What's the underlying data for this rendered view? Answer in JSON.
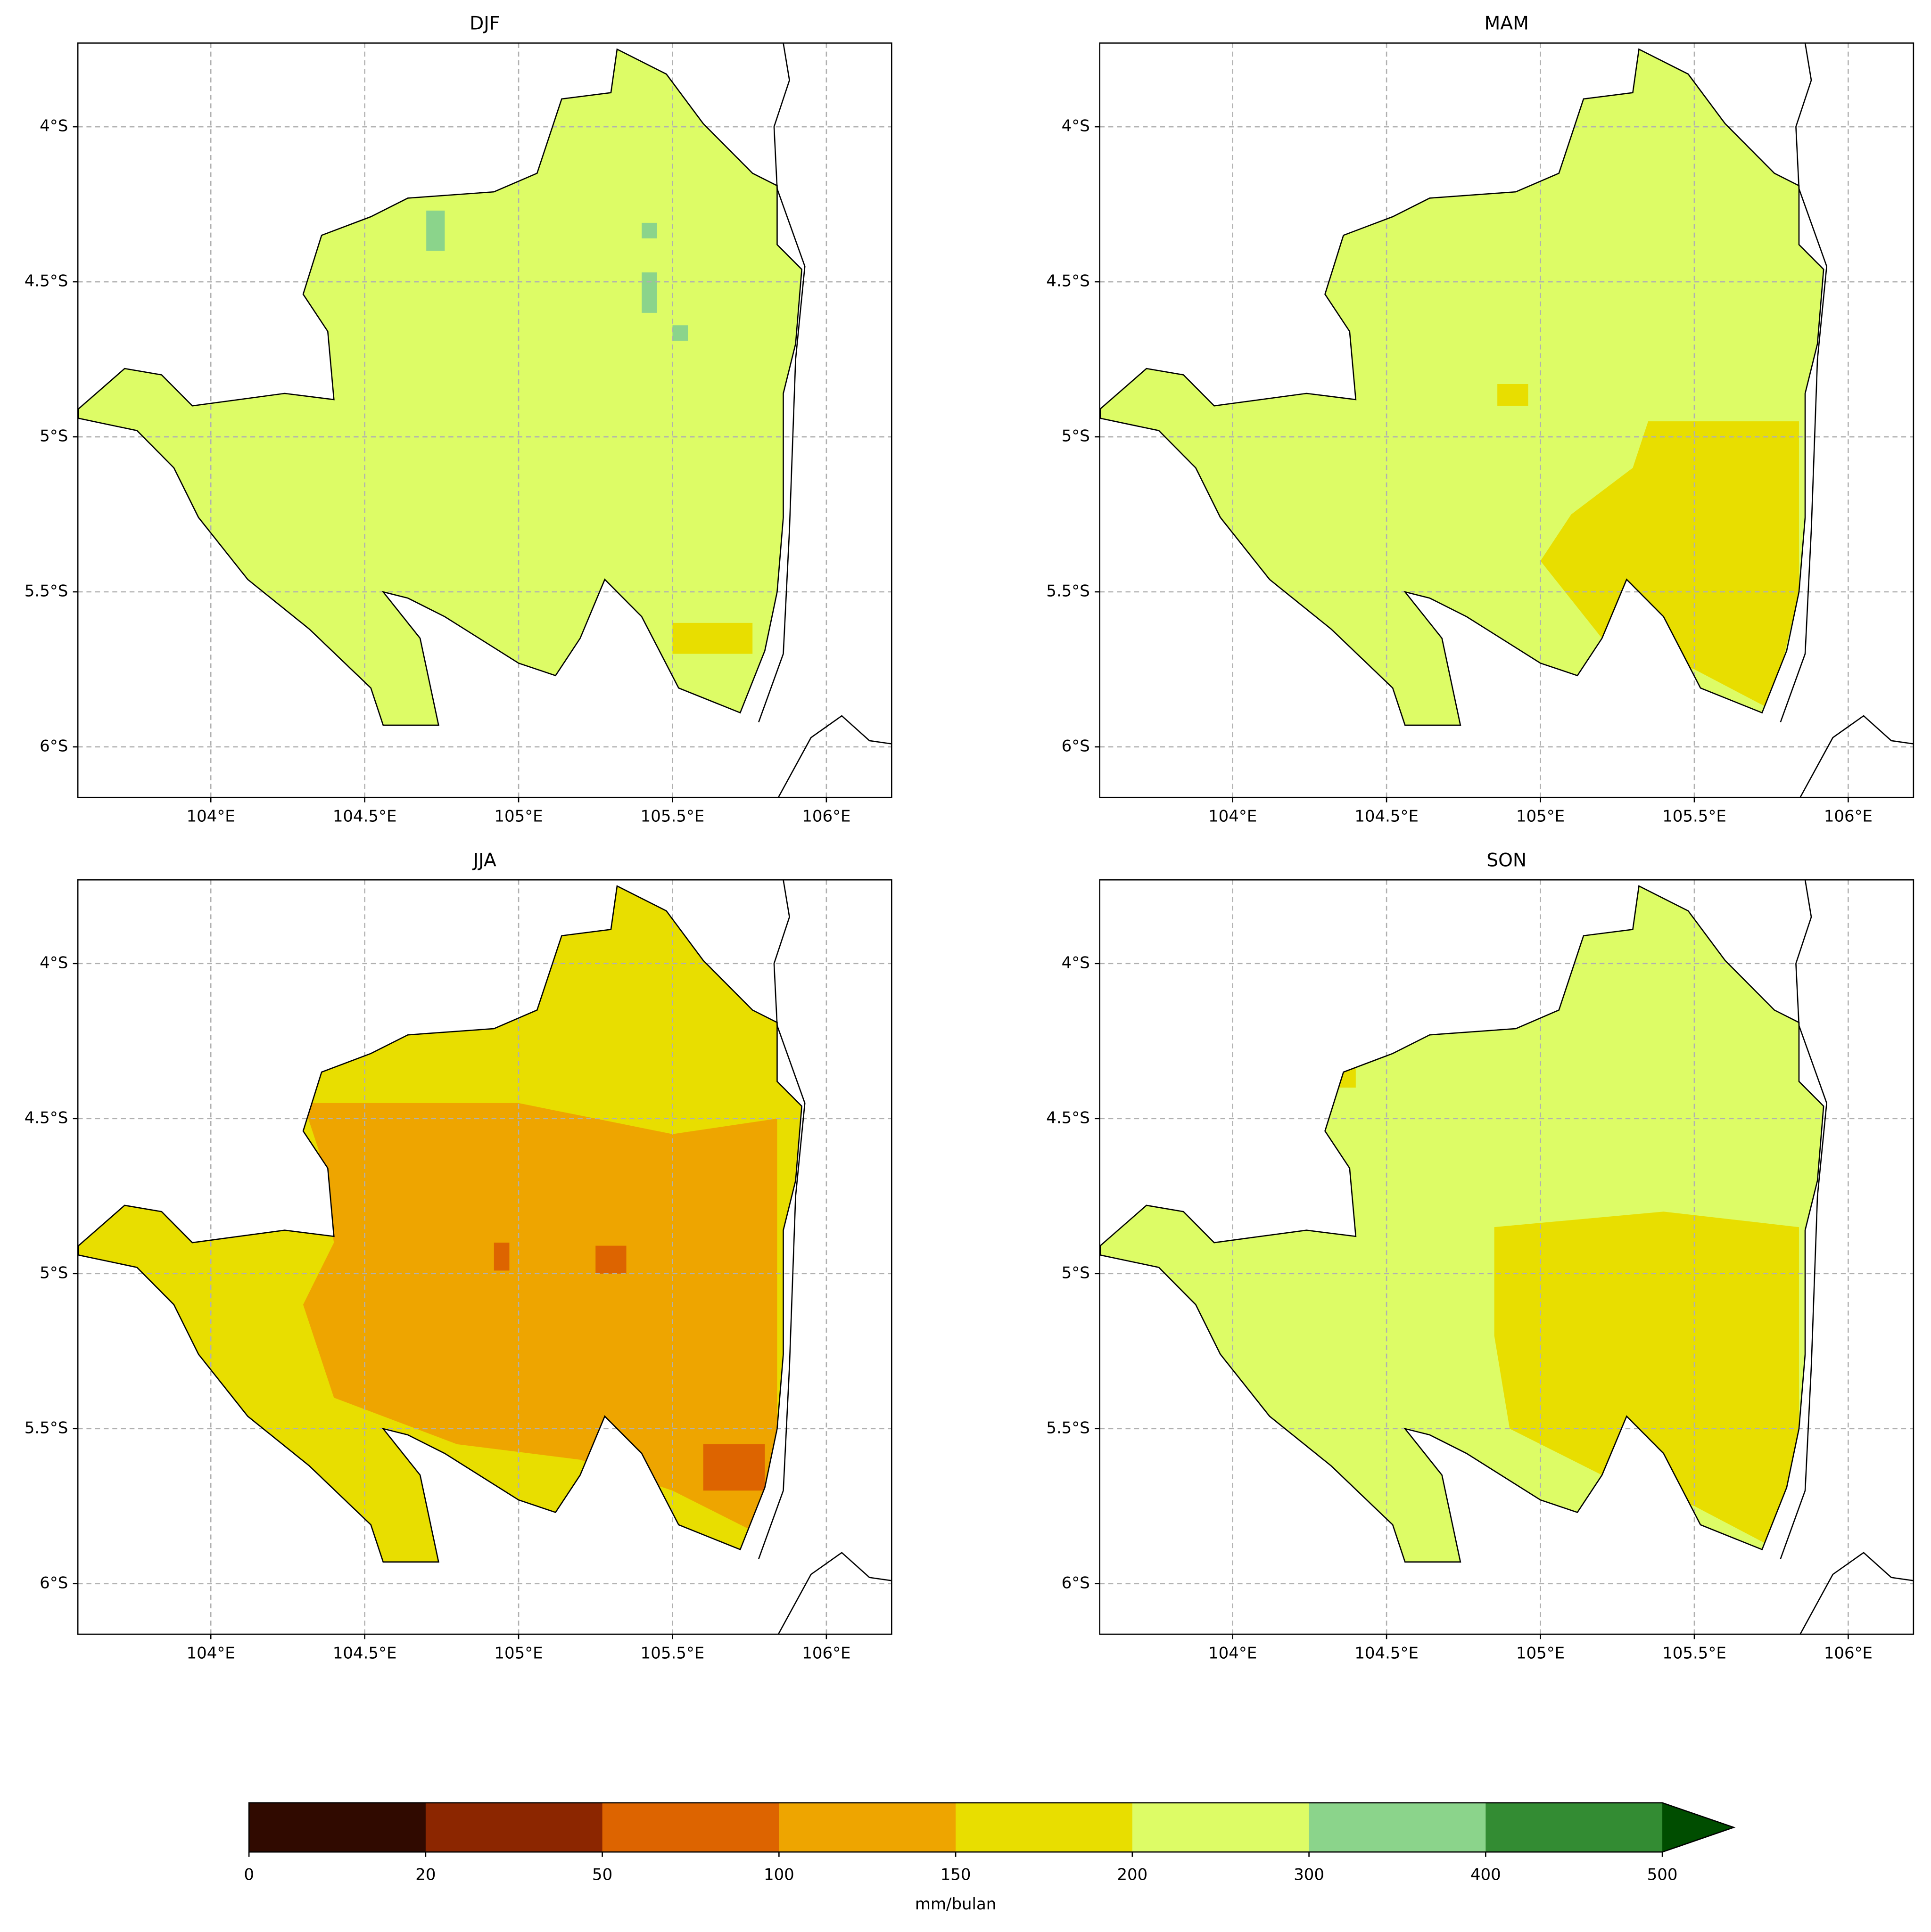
{
  "axes": {
    "xlim": [
      103.568,
      106.212
    ],
    "ylim": [
      -6.163,
      -3.73
    ],
    "xticks": [
      {
        "value": 104,
        "label": "104°E"
      },
      {
        "value": 104.5,
        "label": "104.5°E"
      },
      {
        "value": 105,
        "label": "105°E"
      },
      {
        "value": 105.5,
        "label": "105.5°E"
      },
      {
        "value": 106,
        "label": "106°E"
      }
    ],
    "yticks": [
      {
        "value": -4,
        "label": "4°S"
      },
      {
        "value": -4.5,
        "label": "4.5°S"
      },
      {
        "value": -5,
        "label": "5°S"
      },
      {
        "value": -5.5,
        "label": "5.5°S"
      },
      {
        "value": -6,
        "label": "6°S"
      }
    ],
    "grid": true
  },
  "province_outline": [
    [
      103.57,
      -4.91
    ],
    [
      103.72,
      -4.78
    ],
    [
      103.84,
      -4.8
    ],
    [
      103.94,
      -4.9
    ],
    [
      104.24,
      -4.86
    ],
    [
      104.4,
      -4.88
    ],
    [
      104.38,
      -4.66
    ],
    [
      104.3,
      -4.54
    ],
    [
      104.36,
      -4.35
    ],
    [
      104.52,
      -4.29
    ],
    [
      104.64,
      -4.23
    ],
    [
      104.92,
      -4.21
    ],
    [
      105.06,
      -4.15
    ],
    [
      105.14,
      -3.91
    ],
    [
      105.3,
      -3.89
    ],
    [
      105.32,
      -3.75
    ],
    [
      105.48,
      -3.83
    ],
    [
      105.6,
      -3.99
    ],
    [
      105.76,
      -4.15
    ],
    [
      105.84,
      -4.19
    ],
    [
      105.84,
      -4.38
    ],
    [
      105.92,
      -4.46
    ],
    [
      105.9,
      -4.7
    ],
    [
      105.86,
      -4.86
    ],
    [
      105.86,
      -5.26
    ],
    [
      105.84,
      -5.5
    ],
    [
      105.8,
      -5.69
    ],
    [
      105.72,
      -5.89
    ],
    [
      105.52,
      -5.81
    ],
    [
      105.4,
      -5.58
    ],
    [
      105.28,
      -5.46
    ],
    [
      105.2,
      -5.65
    ],
    [
      105.12,
      -5.77
    ],
    [
      105.0,
      -5.73
    ],
    [
      104.76,
      -5.58
    ],
    [
      104.64,
      -5.52
    ],
    [
      104.56,
      -5.5
    ],
    [
      104.68,
      -5.65
    ],
    [
      104.74,
      -5.93
    ],
    [
      104.56,
      -5.93
    ],
    [
      104.52,
      -5.81
    ],
    [
      104.32,
      -5.62
    ],
    [
      104.12,
      -5.46
    ],
    [
      103.96,
      -5.26
    ],
    [
      103.88,
      -5.1
    ],
    [
      103.76,
      -4.98
    ],
    [
      103.57,
      -4.94
    ]
  ],
  "panels": [
    {
      "title": "DJF",
      "base_value": 250,
      "zones": [
        {
          "polygon": [
            [
              104.7,
              -4.27
            ],
            [
              104.76,
              -4.27
            ],
            [
              104.76,
              -4.4
            ],
            [
              104.7,
              -4.4
            ]
          ],
          "value": 350
        },
        {
          "polygon": [
            [
              105.4,
              -4.47
            ],
            [
              105.45,
              -4.47
            ],
            [
              105.45,
              -4.6
            ],
            [
              105.4,
              -4.6
            ]
          ],
          "value": 350
        },
        {
          "polygon": [
            [
              105.4,
              -4.31
            ],
            [
              105.45,
              -4.31
            ],
            [
              105.45,
              -4.36
            ],
            [
              105.4,
              -4.36
            ]
          ],
          "value": 350
        },
        {
          "polygon": [
            [
              105.5,
              -4.64
            ],
            [
              105.55,
              -4.64
            ],
            [
              105.55,
              -4.69
            ],
            [
              105.5,
              -4.69
            ]
          ],
          "value": 350
        },
        {
          "polygon": [
            [
              105.5,
              -5.6
            ],
            [
              105.76,
              -5.6
            ],
            [
              105.76,
              -5.7
            ],
            [
              105.5,
              -5.7
            ]
          ],
          "value": 175
        }
      ]
    },
    {
      "title": "MAM",
      "base_value": 250,
      "zones": [
        {
          "polygon": [
            [
              105.35,
              -4.95
            ],
            [
              105.84,
              -4.95
            ],
            [
              105.84,
              -5.5
            ],
            [
              105.75,
              -5.88
            ],
            [
              105.5,
              -5.75
            ],
            [
              105.2,
              -5.65
            ],
            [
              105.0,
              -5.4
            ],
            [
              105.1,
              -5.25
            ],
            [
              105.3,
              -5.1
            ]
          ],
          "value": 175
        },
        {
          "polygon": [
            [
              104.86,
              -4.83
            ],
            [
              104.96,
              -4.83
            ],
            [
              104.96,
              -4.9
            ],
            [
              104.86,
              -4.9
            ]
          ],
          "value": 175
        }
      ]
    },
    {
      "title": "JJA",
      "base_value": 175,
      "zones": [
        {
          "polygon": [
            [
              104.3,
              -4.45
            ],
            [
              105.0,
              -4.45
            ],
            [
              105.5,
              -4.55
            ],
            [
              105.84,
              -4.5
            ],
            [
              105.84,
              -5.5
            ],
            [
              105.8,
              -5.85
            ],
            [
              105.5,
              -5.7
            ],
            [
              105.2,
              -5.6
            ],
            [
              104.8,
              -5.55
            ],
            [
              104.4,
              -5.4
            ],
            [
              104.3,
              -5.1
            ],
            [
              104.4,
              -4.9
            ],
            [
              104.35,
              -4.6
            ]
          ],
          "value": 125
        },
        {
          "polygon": [
            [
              105.25,
              -4.91
            ],
            [
              105.35,
              -4.91
            ],
            [
              105.35,
              -5.0
            ],
            [
              105.25,
              -5.0
            ]
          ],
          "value": 75
        },
        {
          "polygon": [
            [
              105.6,
              -5.55
            ],
            [
              105.8,
              -5.55
            ],
            [
              105.8,
              -5.7
            ],
            [
              105.6,
              -5.7
            ]
          ],
          "value": 75
        },
        {
          "polygon": [
            [
              104.92,
              -4.9
            ],
            [
              104.97,
              -4.9
            ],
            [
              104.97,
              -4.99
            ],
            [
              104.92,
              -4.99
            ]
          ],
          "value": 75
        }
      ]
    },
    {
      "title": "SON",
      "base_value": 250,
      "zones": [
        {
          "polygon": [
            [
              104.85,
              -4.85
            ],
            [
              105.4,
              -4.8
            ],
            [
              105.84,
              -4.85
            ],
            [
              105.84,
              -5.55
            ],
            [
              105.75,
              -5.88
            ],
            [
              105.5,
              -5.75
            ],
            [
              105.2,
              -5.65
            ],
            [
              104.9,
              -5.5
            ],
            [
              104.85,
              -5.2
            ]
          ],
          "value": 175
        },
        {
          "polygon": [
            [
              104.3,
              -4.25
            ],
            [
              104.4,
              -4.25
            ],
            [
              104.4,
              -4.4
            ],
            [
              104.3,
              -4.4
            ]
          ],
          "value": 175
        }
      ]
    }
  ],
  "colorbar": {
    "label": "mm/bulan",
    "bounds": [
      0,
      20,
      50,
      100,
      150,
      200,
      300,
      400,
      500
    ],
    "colors": [
      "#300a00",
      "#8c2600",
      "#dd6400",
      "#eea500",
      "#e8de00",
      "#ddfc66",
      "#8bd48b",
      "#338c33",
      "#004d00"
    ]
  }
}
